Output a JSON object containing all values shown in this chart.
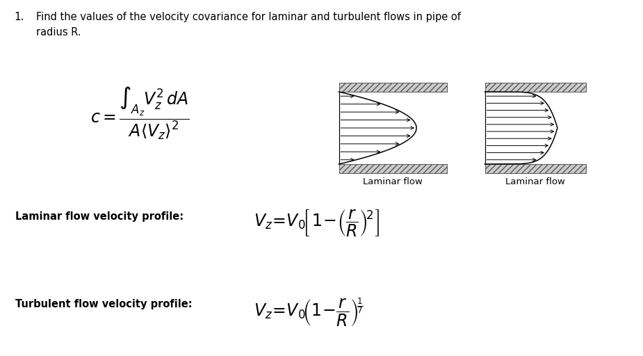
{
  "title_number": "1.",
  "title_text": "Find the values of the velocity covariance for laminar and turbulent flows in pipe of\nradius R.",
  "label_laminar1": "Laminar flow",
  "label_laminar2": "Laminar flow",
  "label_laminar_profile": "Laminar flow velocity profile:",
  "label_turbulent_profile": "Turbulent flow velocity profile:",
  "bg_color": "#ffffff",
  "text_color": "#000000",
  "fig_width": 9.25,
  "fig_height": 5.12,
  "dpi": 100
}
